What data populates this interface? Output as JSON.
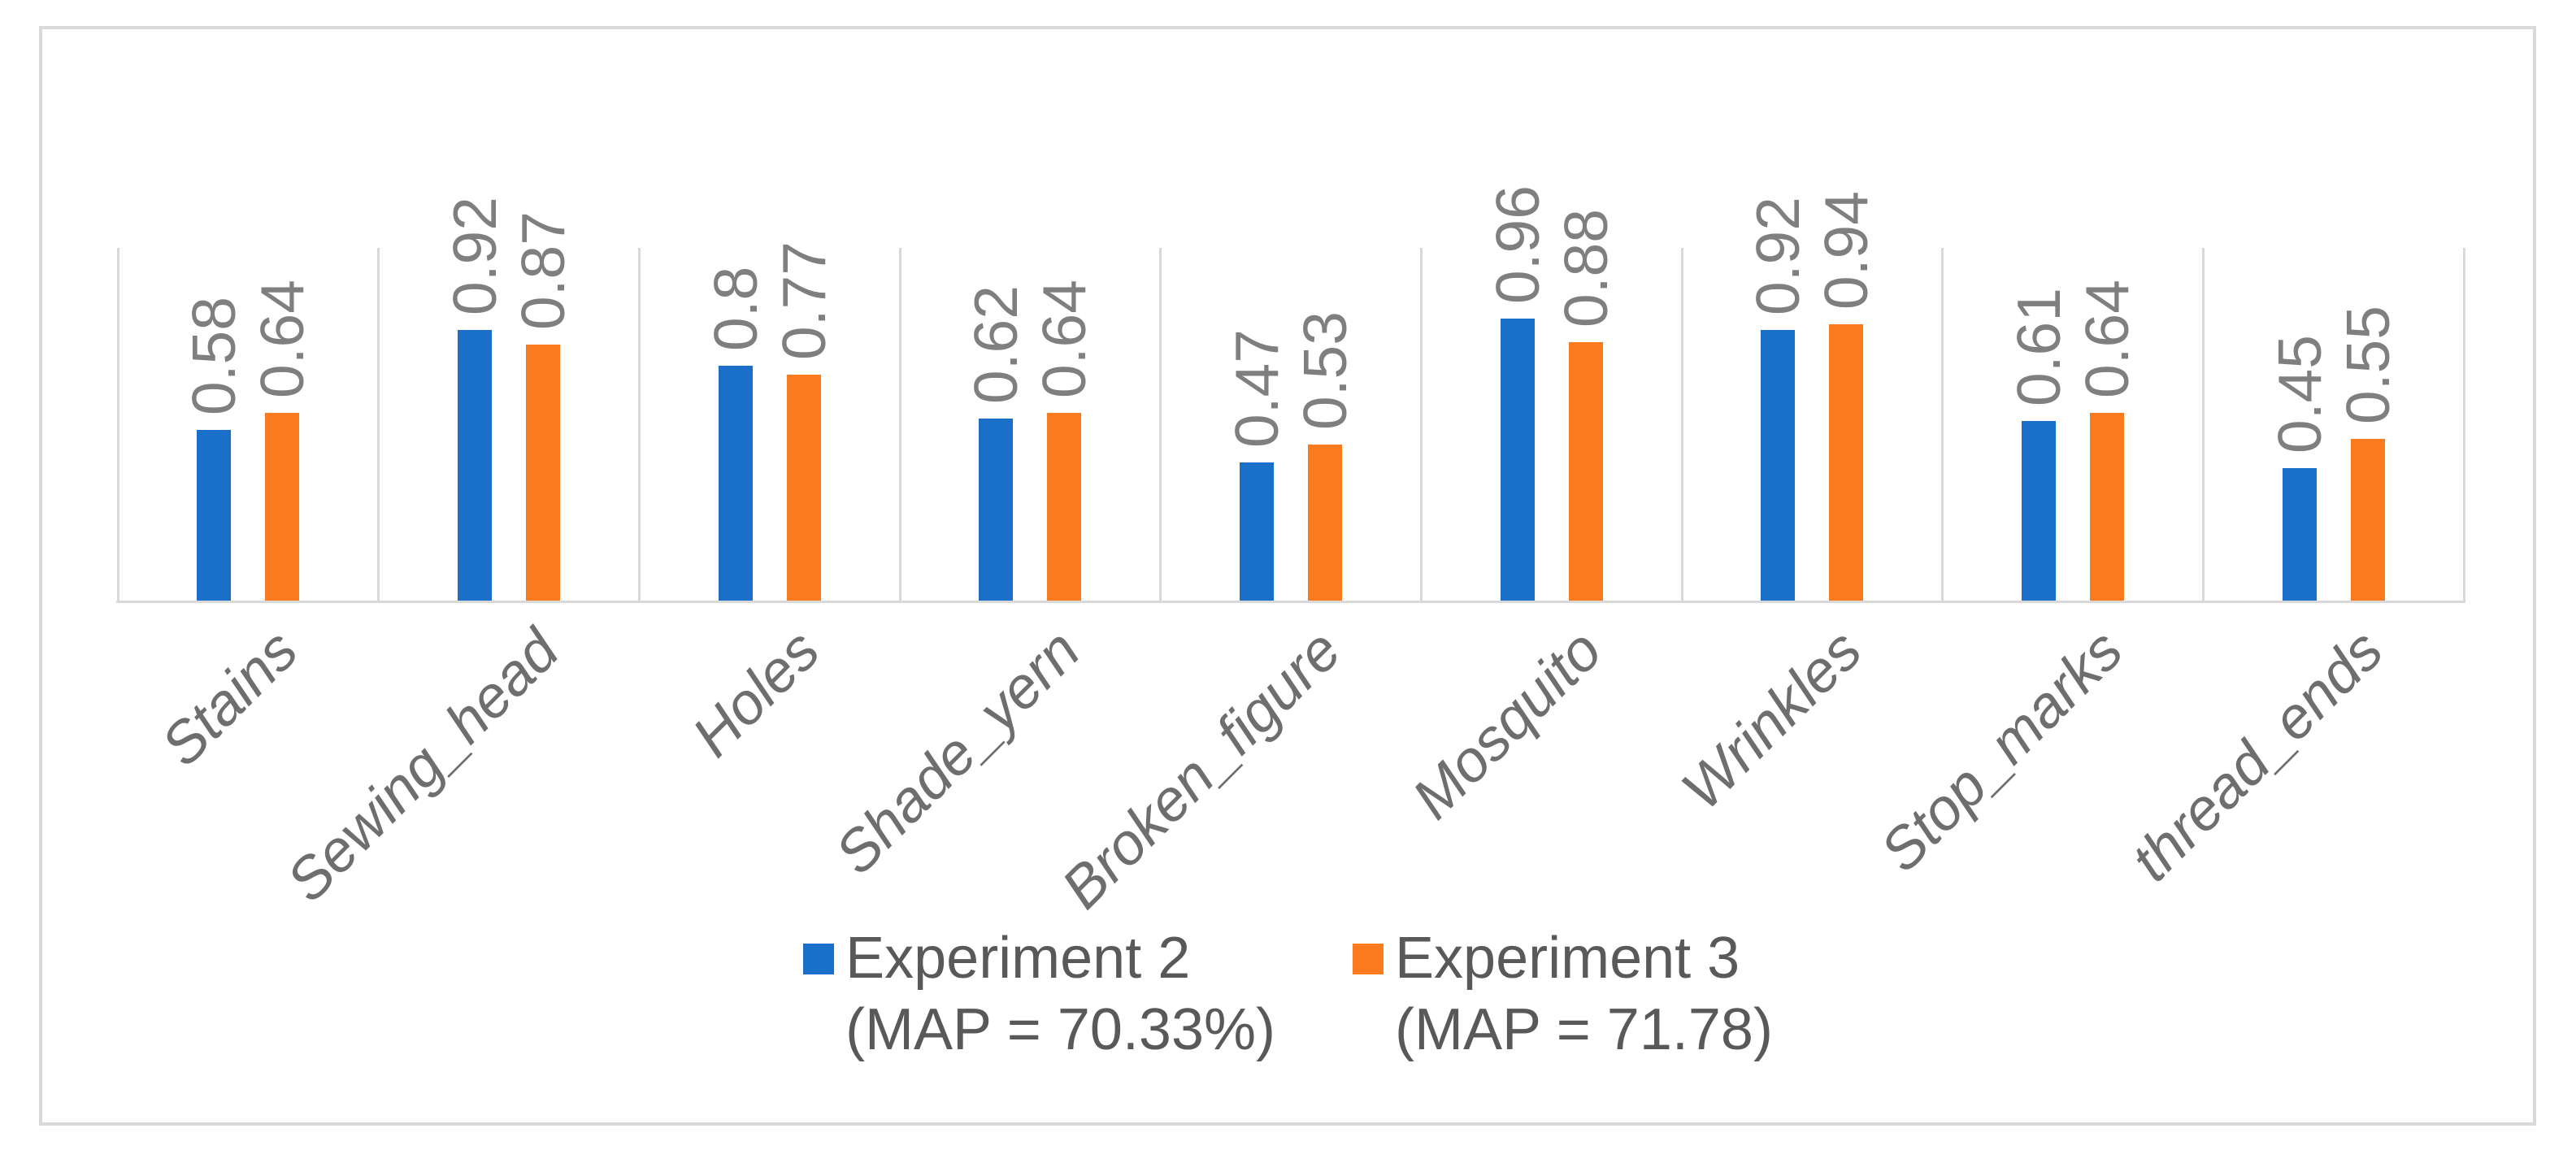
{
  "chart_data": {
    "type": "bar",
    "title": "",
    "xlabel": "",
    "ylabel": "",
    "ylim": [
      0,
      1.2
    ],
    "grid": "vertical-category-separators-only",
    "legend_position": "bottom",
    "data_label_rotation": -90,
    "category_label_rotation": -45,
    "categories": [
      "Stains",
      "Sewing_head",
      "Holes",
      "Shade_yern",
      "Broken_figure",
      "Mosquito",
      "Wrinkles",
      "Stop_marks",
      "thread_ends"
    ],
    "series": [
      {
        "name": "Experiment 2 (MAP = 70.33%)",
        "color": "#1A6FC9",
        "values": [
          0.58,
          0.92,
          0.8,
          0.62,
          0.47,
          0.96,
          0.92,
          0.61,
          0.45
        ],
        "labels": [
          "0.58",
          "0.92",
          "0.8",
          "0.62",
          "0.47",
          "0.96",
          "0.92",
          "0.61",
          "0.45"
        ]
      },
      {
        "name": "Experiment 3 (MAP = 71.78)",
        "color": "#F97B1E",
        "values": [
          0.64,
          0.87,
          0.77,
          0.64,
          0.53,
          0.88,
          0.94,
          0.64,
          0.55
        ],
        "labels": [
          "0.64",
          "0.87",
          "0.77",
          "0.64",
          "0.53",
          "0.88",
          "0.94",
          "0.64",
          "0.55"
        ]
      }
    ]
  },
  "legend": {
    "items": [
      {
        "line1": "Experiment 2",
        "line2": "(MAP = 70.33%)",
        "color": "#1A6FC9"
      },
      {
        "line1": "Experiment 3",
        "line2": "(MAP = 71.78)",
        "color": "#F97B1E"
      }
    ]
  },
  "colors": {
    "series_blue": "#1A6FC9",
    "series_orange": "#F97B1E",
    "gridline": "#D9D9D9",
    "frame_border": "#D9D9D9",
    "data_label_text": "#7F7F7F",
    "category_label_text": "#6E6E6E",
    "legend_text": "#595959",
    "background": "#FFFFFF"
  }
}
